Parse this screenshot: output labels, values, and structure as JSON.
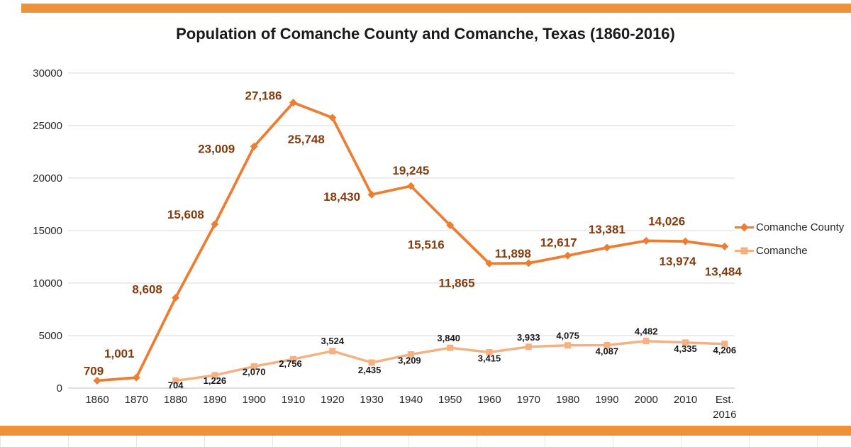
{
  "frame": {
    "accent_color": "#F0913A"
  },
  "chart_data": {
    "type": "line",
    "title": "Population of Comanche County and Comanche, Texas (1860-2016)",
    "categories": [
      "1860",
      "1870",
      "1880",
      "1890",
      "1900",
      "1910",
      "1920",
      "1930",
      "1940",
      "1950",
      "1960",
      "1970",
      "1980",
      "1990",
      "2000",
      "2010",
      "Est. 2016"
    ],
    "series": [
      {
        "name": "Comanche County",
        "color": "#ED7D31",
        "label_color": "#843C0C",
        "marker": "diamond",
        "values": [
          709,
          1001,
          8608,
          15608,
          23009,
          27186,
          25748,
          18430,
          19245,
          15516,
          11865,
          11898,
          12617,
          13381,
          14026,
          13974,
          13484
        ],
        "labels": [
          "709",
          "1,001",
          "8,608",
          "15,608",
          "23,009",
          "27,186",
          "25,748",
          "18,430",
          "19,245",
          "15,516",
          "11,865",
          "11,898",
          "12,617",
          "13,381",
          "14,026",
          "13,974",
          "13,484"
        ]
      },
      {
        "name": "Comanche",
        "color": "#F4B183",
        "label_color": "#1A1A1A",
        "marker": "square",
        "values": [
          null,
          null,
          704,
          1226,
          2070,
          2756,
          3524,
          2435,
          3209,
          3840,
          3415,
          3933,
          4075,
          4087,
          4482,
          4335,
          4206
        ],
        "labels": [
          null,
          null,
          "704",
          "1,226",
          "2,070",
          "2,756",
          "3,524",
          "2,435",
          "3,209",
          "3,840",
          "3,415",
          "3,933",
          "4,075",
          "4,087",
          "4,482",
          "4,335",
          "4,206"
        ]
      }
    ],
    "y_axis": {
      "min": 0,
      "max": 30000,
      "step": 5000,
      "tick_labels": [
        "0",
        "5000",
        "10000",
        "15000",
        "20000",
        "25000",
        "30000"
      ]
    },
    "grid": true,
    "grid_color": "#D9D9D9",
    "axis_color": "#BFBFBF",
    "tick_text_color": "#262626",
    "legend_position": "right"
  }
}
